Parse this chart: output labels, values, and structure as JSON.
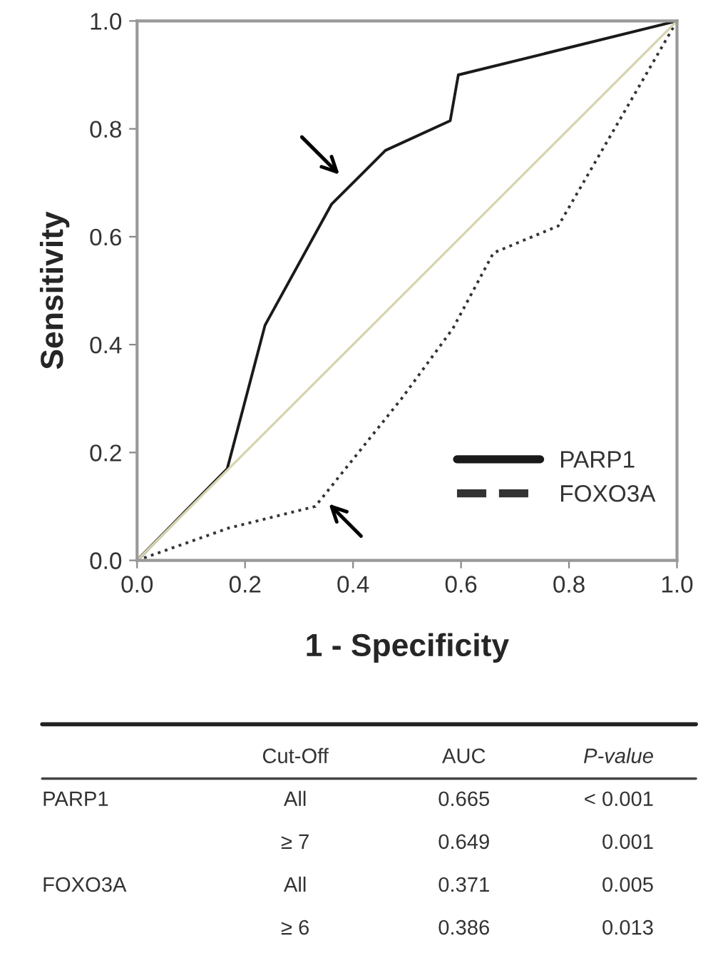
{
  "chart_data": {
    "type": "line",
    "xlabel": "1 - Specificity",
    "ylabel": "Sensitivity",
    "xlim": [
      0,
      1
    ],
    "ylim": [
      0,
      1
    ],
    "xticks": [
      {
        "value": 0,
        "label": "0.0"
      },
      0.2,
      0.4,
      0.6,
      0.8,
      {
        "value": 1,
        "label": "1.0"
      }
    ],
    "yticks": [
      {
        "value": 0,
        "label": "0.0"
      },
      0.2,
      0.4,
      0.6,
      0.8,
      {
        "value": 1,
        "label": "1.0"
      }
    ],
    "series": [
      {
        "name": "PARP1",
        "color": "#1a1a1a",
        "line_style": "solid",
        "x": [
          0,
          0.167,
          0.237,
          0.36,
          0.46,
          0.58,
          0.595,
          1
        ],
        "values": [
          0,
          0.17,
          0.436,
          0.66,
          0.76,
          0.815,
          0.9,
          1
        ]
      },
      {
        "name": "FOXO3A",
        "color": "#333333",
        "line_style": "dotted",
        "x": [
          0,
          0.17,
          0.33,
          0.49,
          0.585,
          0.66,
          0.78,
          1
        ],
        "values": [
          0,
          0.06,
          0.1,
          0.3,
          0.43,
          0.57,
          0.62,
          1
        ]
      },
      {
        "color": "#d8d4b0",
        "line_style": "solid",
        "x": [
          0,
          1
        ],
        "values": [
          0,
          1
        ]
      }
    ],
    "legend": "bottom right",
    "grid": false,
    "annotations": [
      "\tCut-Off\tAUC\tP-value",
      "PARP1\tAll\t0.665\t< 0.001",
      "\t≥ 7\t0.649\t0.001",
      "FOXO3A\tAll\t0.371\t0.005",
      "\t≥ 6\t0.386\t0.013"
    ]
  }
}
